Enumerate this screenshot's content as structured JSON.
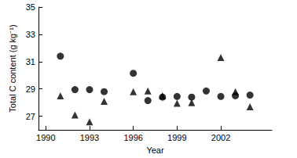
{
  "chart_data": {
    "type": "scatter",
    "x_label": "Year",
    "y_label": "Total C content (g kg⁻¹)",
    "xlim": [
      1989.5,
      2005.5
    ],
    "xticks": [
      1990,
      1993,
      1996,
      1999,
      2002
    ],
    "ylim": [
      26,
      35
    ],
    "yticks": [
      27,
      29,
      31,
      33,
      35
    ],
    "grid": false,
    "series": [
      {
        "marker": "circle",
        "color": "#000000",
        "x": [
          1991,
          1992,
          1993,
          1994,
          1996,
          1997,
          1998,
          1999,
          2000,
          2001,
          2002,
          2003,
          2004
        ],
        "values": [
          31.4,
          28.95,
          28.95,
          28.8,
          30.15,
          28.15,
          28.4,
          28.45,
          28.4,
          28.85,
          28.45,
          28.5,
          28.55
        ]
      },
      {
        "marker": "triangle",
        "color": "#000000",
        "x": [
          1991,
          1992,
          1993,
          1994,
          1996,
          1997,
          1998,
          1999,
          2000,
          2002,
          2003,
          2004
        ],
        "values": [
          28.5,
          27.1,
          26.6,
          28.1,
          28.8,
          28.85,
          28.5,
          27.95,
          28.0,
          31.3,
          28.8,
          27.7
        ]
      }
    ]
  }
}
